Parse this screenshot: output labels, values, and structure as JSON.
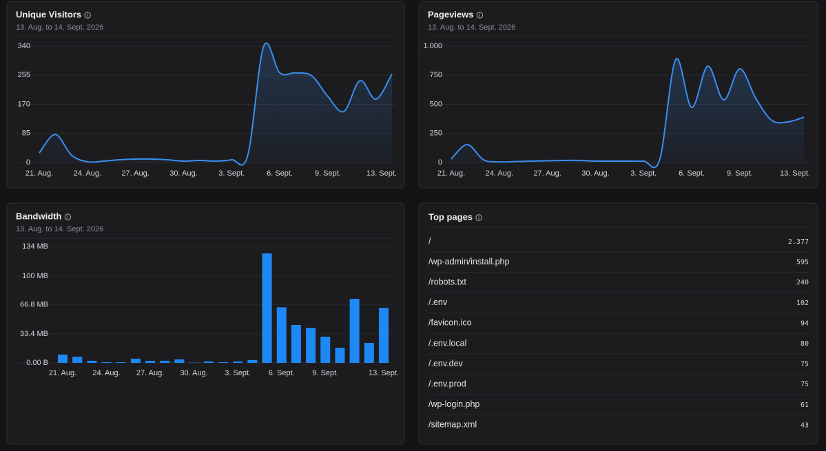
{
  "chart_data": [
    {
      "type": "area",
      "title": "Unique Visitors",
      "subtitle": "13. Aug. to 14. Sept. 2026",
      "categories": [
        "21. Aug.",
        null,
        null,
        "24. Aug.",
        null,
        null,
        "27. Aug.",
        null,
        null,
        "30. Aug.",
        null,
        null,
        "3. Sept.",
        null,
        null,
        "6. Sept.",
        null,
        null,
        "9. Sept.",
        null,
        null,
        null,
        "13. Sept."
      ],
      "values": [
        28,
        82,
        22,
        2,
        4,
        8,
        10,
        10,
        8,
        4,
        6,
        4,
        8,
        20,
        340,
        262,
        262,
        253,
        193,
        149,
        239,
        185,
        259
      ],
      "color": "#3b8ef0",
      "ylim": [
        0,
        340
      ],
      "yticks": [
        0,
        85,
        170,
        255,
        340
      ],
      "grid": true
    },
    {
      "type": "area",
      "title": "Pageviews",
      "subtitle": "13. Aug. to 14. Sept. 2026",
      "categories": [
        "21. Aug.",
        null,
        null,
        "24. Aug.",
        null,
        null,
        "27. Aug.",
        null,
        null,
        "30. Aug.",
        null,
        null,
        "3. Sept.",
        null,
        null,
        "6. Sept.",
        null,
        null,
        "9. Sept.",
        null,
        null,
        null,
        "13. Sept."
      ],
      "values": [
        30,
        154,
        24,
        5,
        8,
        12,
        15,
        18,
        18,
        12,
        12,
        12,
        12,
        24,
        885,
        473,
        828,
        538,
        805,
        550,
        361,
        349,
        390
      ],
      "color": "#3b8ef0",
      "ylim": [
        0,
        1000
      ],
      "yticks": [
        0,
        250,
        500,
        750,
        {
          "value": 1000,
          "label": "1.000"
        }
      ],
      "grid": true
    },
    {
      "type": "bar",
      "title": "Bandwidth",
      "subtitle": "13. Aug. to 14. Sept. 2026",
      "categories": [
        "21. Aug.",
        null,
        null,
        "24. Aug.",
        null,
        null,
        "27. Aug.",
        null,
        null,
        "30. Aug.",
        null,
        null,
        "3. Sept.",
        null,
        null,
        "6. Sept.",
        null,
        null,
        "9. Sept.",
        null,
        null,
        null,
        "13. Sept."
      ],
      "values": [
        9.5,
        7.1,
        2.4,
        0.8,
        0.8,
        4.8,
        2.4,
        2.4,
        4.0,
        0.3,
        1.6,
        0.8,
        1.6,
        3.2,
        126,
        64,
        43.6,
        40.4,
        30.1,
        17.4,
        73.7,
        23,
        63.4
      ],
      "color": "#1e88f5",
      "ylim": [
        0,
        134
      ],
      "yticks": [
        {
          "value": 0,
          "label": "0.00 B"
        },
        {
          "value": 33.4,
          "label": "33.4 MB"
        },
        {
          "value": 66.8,
          "label": "66.8 MB"
        },
        {
          "value": 100,
          "label": "100 MB"
        },
        {
          "value": 134,
          "label": "134 MB"
        }
      ],
      "grid": true
    }
  ],
  "top_pages": {
    "title": "Top pages",
    "rows": [
      [
        "/",
        "2.377"
      ],
      [
        "/wp-admin/install.php",
        "595"
      ],
      [
        "/robots.txt",
        "240"
      ],
      [
        "/.env",
        "102"
      ],
      [
        "/favicon.ico",
        "94"
      ],
      [
        "/.env.local",
        "80"
      ],
      [
        "/.env.dev",
        "75"
      ],
      [
        "/.env.prod",
        "75"
      ],
      [
        "/wp-login.php",
        "61"
      ],
      [
        "/sitemap.xml",
        "43"
      ]
    ]
  }
}
